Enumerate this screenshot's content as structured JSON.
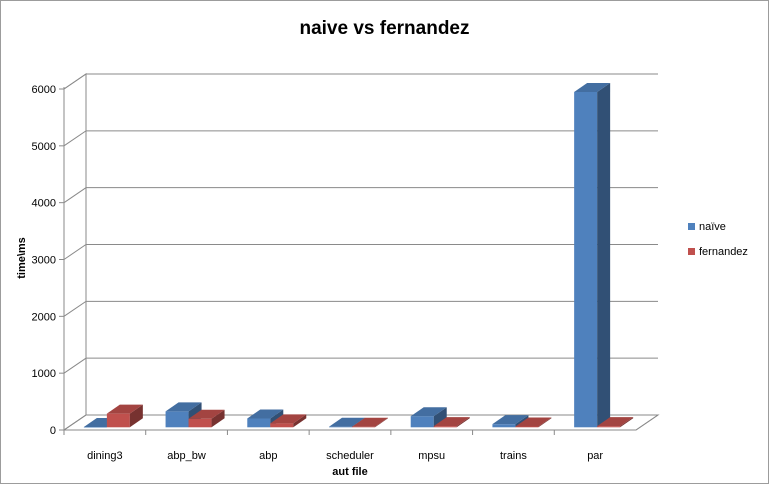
{
  "chart_data": {
    "type": "bar",
    "title": "naive vs fernandez",
    "xlabel": "aut file",
    "ylabel": "time\\ms",
    "categories": [
      "dining3",
      "abp_bw",
      "abp",
      "scheduler",
      "mpsu",
      "trains",
      "par"
    ],
    "series": [
      {
        "name": "naïve",
        "values": [
          5,
          280,
          155,
          10,
          195,
          55,
          5900
        ],
        "color": "#4f81bd"
      },
      {
        "name": "fernandez",
        "values": [
          240,
          150,
          70,
          10,
          20,
          15,
          20
        ],
        "color": "#c0504d"
      }
    ],
    "ylim": [
      0,
      6000
    ],
    "yticks": [
      0,
      1000,
      2000,
      3000,
      4000,
      5000,
      6000
    ],
    "grid": true,
    "legend": "right"
  }
}
